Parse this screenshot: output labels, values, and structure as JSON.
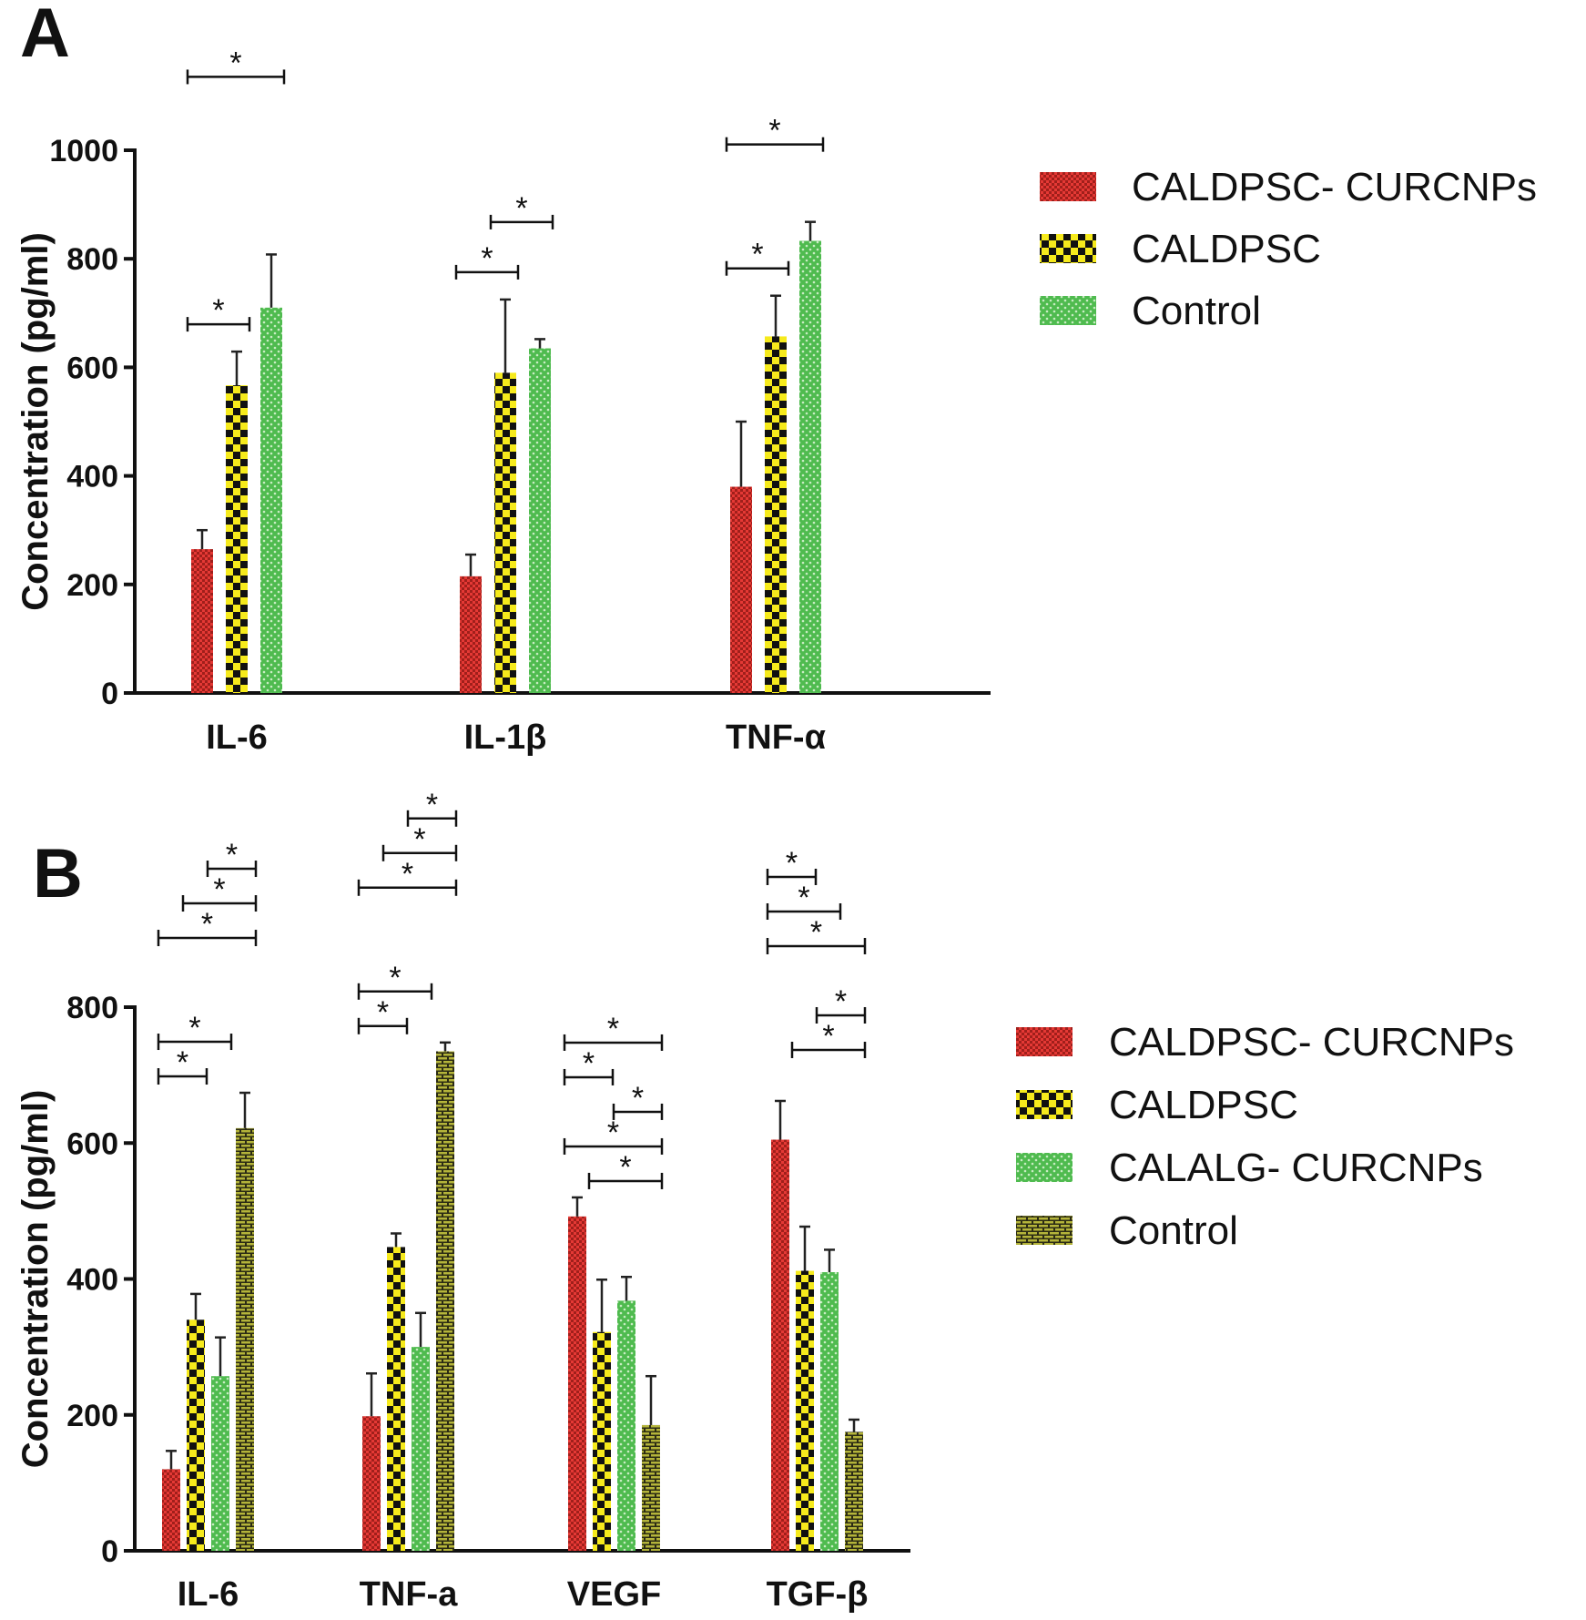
{
  "figure": {
    "colors": {
      "red": "#e53935",
      "yellow": "#f6ea1c",
      "green": "#4fbb4f",
      "olive": "#b4b43a",
      "ink": "#111111"
    }
  },
  "chart_data": [
    {
      "type": "bar",
      "panel_label": "A",
      "title": "",
      "xlabel": "",
      "ylabel": "Concentration (pg/ml)",
      "ylim": [
        0,
        1000
      ],
      "yticks": [
        "0",
        "200",
        "400",
        "600",
        "800",
        "1000"
      ],
      "categories": [
        "IL-6",
        "IL-1β",
        "TNF-α"
      ],
      "series": [
        {
          "name": "CALDPSC- CURCNPs",
          "pattern": "red",
          "values": [
            265,
            215,
            380
          ],
          "errors": [
            35,
            40,
            120
          ]
        },
        {
          "name": "CALDPSC",
          "pattern": "yellow",
          "values": [
            567,
            590,
            657
          ],
          "errors": [
            62,
            135,
            75
          ]
        },
        {
          "name": "Control",
          "pattern": "green",
          "values": [
            710,
            635,
            833
          ],
          "errors": [
            98,
            17,
            35
          ]
        }
      ],
      "legend": {
        "position": "top-right",
        "entries": [
          "CALDPSC- CURCNPs",
          "CALDPSC",
          "Control"
        ]
      },
      "significance": [
        {
          "category": 0,
          "from": 0,
          "to": 2,
          "level": 5,
          "label": "*"
        },
        {
          "category": 0,
          "from": 0,
          "to": 1,
          "level": 1,
          "label": "*"
        },
        {
          "category": 1,
          "from": 1,
          "to": 2,
          "level": 3,
          "label": "*"
        },
        {
          "category": 1,
          "from": 0,
          "to": 1,
          "level": 1,
          "label": "*"
        },
        {
          "category": 2,
          "from": 0,
          "to": 2,
          "level": 3,
          "label": "*"
        },
        {
          "category": 2,
          "from": 0,
          "to": 1,
          "level": 1,
          "label": "*"
        }
      ]
    },
    {
      "type": "bar",
      "panel_label": "B",
      "title": "",
      "xlabel": "",
      "ylabel": "Concentration (pg/ml)",
      "ylim": [
        0,
        800
      ],
      "yticks": [
        "0",
        "200",
        "400",
        "600",
        "800"
      ],
      "categories": [
        "IL-6",
        "TNF-a",
        "VEGF",
        "TGF-β"
      ],
      "series": [
        {
          "name": "CALDPSC- CURCNPs",
          "pattern": "red",
          "values": [
            120,
            198,
            492,
            605
          ],
          "errors": [
            27,
            63,
            28,
            57
          ]
        },
        {
          "name": "CALDPSC",
          "pattern": "yellow",
          "values": [
            340,
            447,
            322,
            412
          ],
          "errors": [
            38,
            20,
            77,
            65
          ]
        },
        {
          "name": "CALALG- CURCNPs",
          "pattern": "green",
          "values": [
            257,
            300,
            368,
            410
          ],
          "errors": [
            57,
            50,
            35,
            33
          ]
        },
        {
          "name": "Control",
          "pattern": "olive",
          "values": [
            622,
            735,
            185,
            175
          ],
          "errors": [
            52,
            13,
            72,
            18
          ]
        }
      ],
      "legend": {
        "position": "right",
        "entries": [
          "CALDPSC- CURCNPs",
          "CALDPSC",
          "CALALG- CURCNPs",
          "Control"
        ]
      },
      "significance": [
        {
          "category": 0,
          "from": 0,
          "to": 1,
          "level": 1,
          "label": "*"
        },
        {
          "category": 0,
          "from": 0,
          "to": 2,
          "level": 2,
          "label": "*"
        },
        {
          "category": 0,
          "from": 0,
          "to": 3,
          "level": 5,
          "label": "*"
        },
        {
          "category": 0,
          "from": 1,
          "to": 3,
          "level": 6,
          "label": "*"
        },
        {
          "category": 0,
          "from": 2,
          "to": 3,
          "level": 7,
          "label": "*"
        },
        {
          "category": 1,
          "from": 0,
          "to": 1,
          "level": 1,
          "label": "*"
        },
        {
          "category": 1,
          "from": 0,
          "to": 2,
          "level": 2,
          "label": "*"
        },
        {
          "category": 1,
          "from": 0,
          "to": 3,
          "level": 5,
          "label": "*"
        },
        {
          "category": 1,
          "from": 1,
          "to": 3,
          "level": 6,
          "label": "*"
        },
        {
          "category": 1,
          "from": 2,
          "to": 3,
          "level": 7,
          "label": "*"
        },
        {
          "category": 2,
          "from": 0,
          "to": 3,
          "level": 2,
          "label": "*"
        },
        {
          "category": 2,
          "from": 0,
          "to": 3,
          "level": 5,
          "label": "*"
        },
        {
          "category": 2,
          "from": 0,
          "to": 1,
          "level": 4,
          "label": "*"
        },
        {
          "category": 2,
          "from": 1,
          "to": 3,
          "level": 1,
          "label": "*"
        },
        {
          "category": 2,
          "from": 2,
          "to": 3,
          "level": 3,
          "label": "*"
        },
        {
          "category": 3,
          "from": 0,
          "to": 1,
          "level": 7,
          "label": "*"
        },
        {
          "category": 3,
          "from": 0,
          "to": 2,
          "level": 6,
          "label": "*"
        },
        {
          "category": 3,
          "from": 0,
          "to": 3,
          "level": 5,
          "label": "*"
        },
        {
          "category": 3,
          "from": 1,
          "to": 3,
          "level": 2,
          "label": "*"
        },
        {
          "category": 3,
          "from": 2,
          "to": 3,
          "level": 3,
          "label": "*"
        }
      ]
    }
  ]
}
